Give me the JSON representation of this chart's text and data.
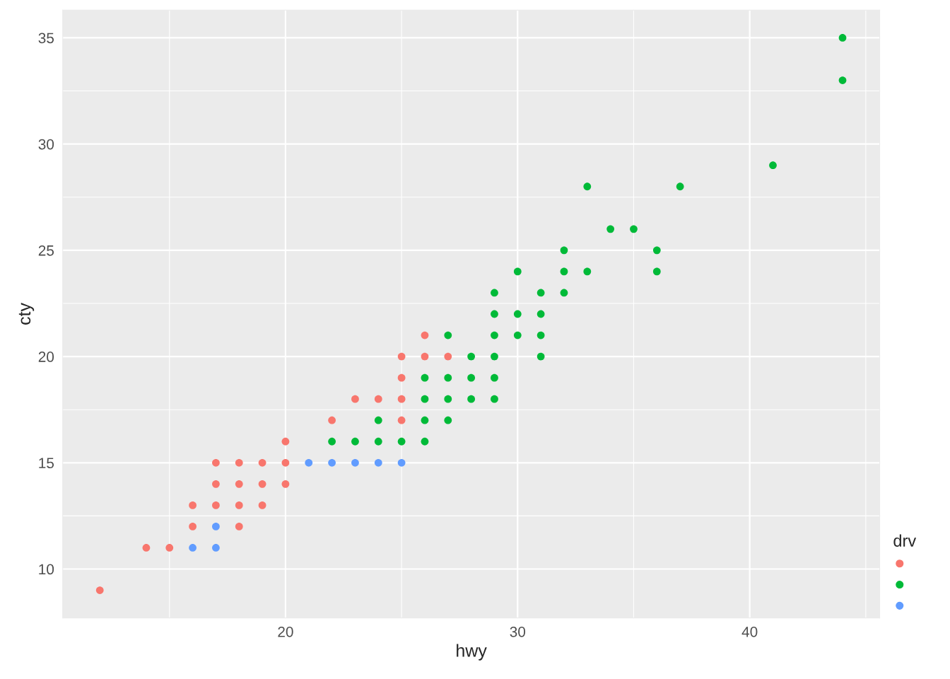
{
  "chart_data": {
    "type": "scatter",
    "xlabel": "hwy",
    "ylabel": "cty",
    "legend_title": "drv",
    "xlim": [
      10.4,
      45.6
    ],
    "ylim": [
      7.7,
      36.3
    ],
    "xticks": [
      20,
      30,
      40
    ],
    "yticks": [
      10,
      15,
      20,
      25,
      30,
      35
    ],
    "grid": true,
    "marker": "circle",
    "series": [
      {
        "color": "#f8766d",
        "x": [
          12,
          14,
          15,
          16,
          16,
          17,
          17,
          17,
          18,
          18,
          18,
          18,
          19,
          19,
          19,
          20,
          20,
          20,
          22,
          23,
          24,
          25,
          25,
          25,
          25,
          26,
          26,
          27
        ],
        "values": [
          9,
          11,
          11,
          12,
          13,
          13,
          14,
          15,
          12,
          13,
          14,
          15,
          13,
          14,
          15,
          14,
          15,
          16,
          17,
          18,
          18,
          17,
          18,
          19,
          20,
          20,
          21,
          20
        ]
      },
      {
        "color": "#00ba38",
        "x": [
          22,
          23,
          24,
          24,
          25,
          26,
          26,
          26,
          26,
          27,
          27,
          27,
          27,
          28,
          28,
          28,
          29,
          29,
          29,
          29,
          29,
          29,
          30,
          30,
          30,
          31,
          31,
          31,
          31,
          32,
          32,
          32,
          33,
          33,
          34,
          35,
          36,
          36,
          37,
          41,
          44,
          44
        ],
        "values": [
          16,
          16,
          16,
          17,
          16,
          16,
          17,
          18,
          19,
          17,
          18,
          19,
          21,
          18,
          19,
          20,
          18,
          19,
          20,
          21,
          22,
          23,
          21,
          22,
          24,
          20,
          21,
          22,
          23,
          23,
          24,
          25,
          24,
          28,
          26,
          26,
          24,
          25,
          28,
          29,
          33,
          35
        ]
      },
      {
        "color": "#619cff",
        "x": [
          16,
          17,
          17,
          21,
          22,
          23,
          24,
          25
        ],
        "values": [
          11,
          11,
          12,
          15,
          15,
          15,
          15,
          15
        ]
      }
    ]
  }
}
